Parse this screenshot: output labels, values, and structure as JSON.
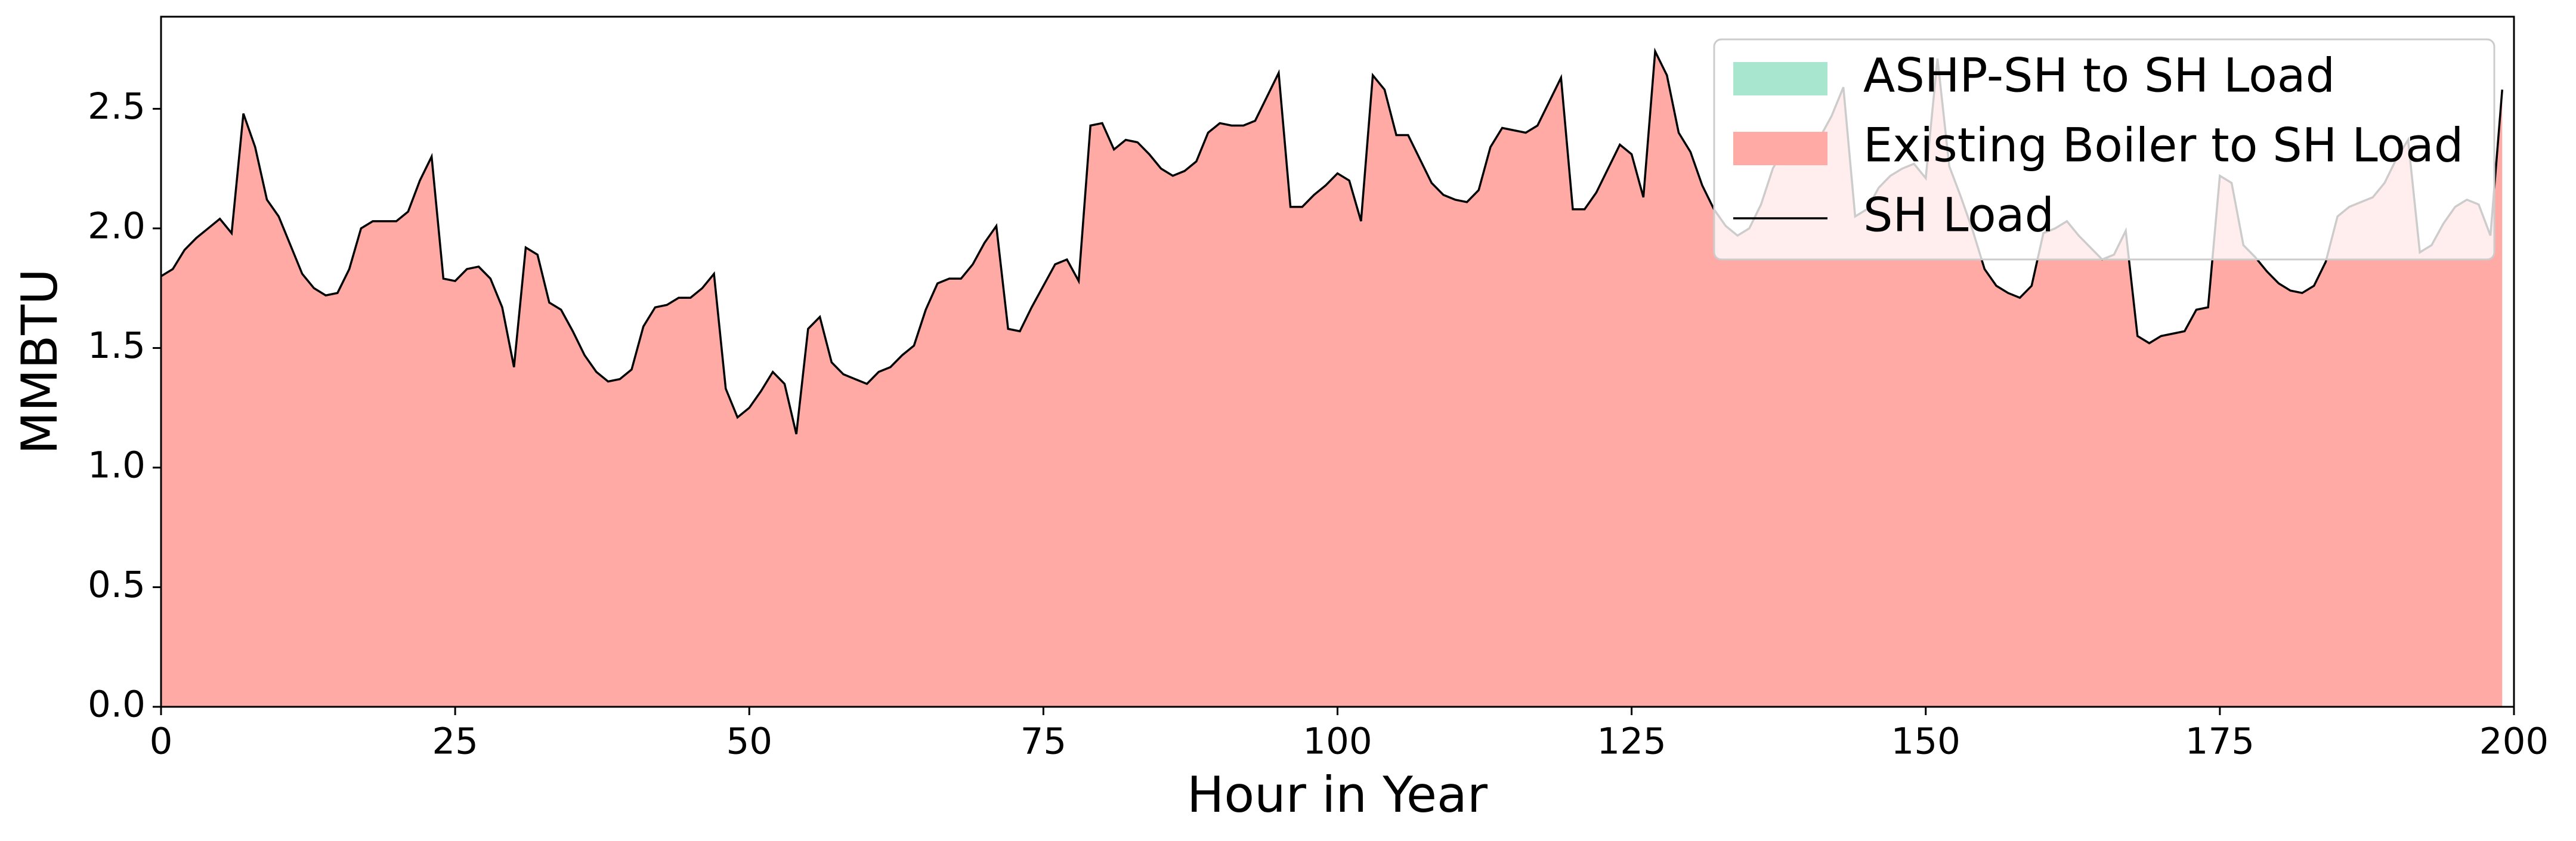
{
  "chart_data": {
    "type": "area",
    "xlabel": "Hour in Year",
    "ylabel": "MMBTU",
    "x": [
      0,
      1,
      2,
      3,
      4,
      5,
      6,
      7,
      8,
      9,
      10,
      11,
      12,
      13,
      14,
      15,
      16,
      17,
      18,
      19,
      20,
      21,
      22,
      23,
      24,
      25,
      26,
      27,
      28,
      29,
      30,
      31,
      32,
      33,
      34,
      35,
      36,
      37,
      38,
      39,
      40,
      41,
      42,
      43,
      44,
      45,
      46,
      47,
      48,
      49,
      50,
      51,
      52,
      53,
      54,
      55,
      56,
      57,
      58,
      59,
      60,
      61,
      62,
      63,
      64,
      65,
      66,
      67,
      68,
      69,
      70,
      71,
      72,
      73,
      74,
      75,
      76,
      77,
      78,
      79,
      80,
      81,
      82,
      83,
      84,
      85,
      86,
      87,
      88,
      89,
      90,
      91,
      92,
      93,
      94,
      95,
      96,
      97,
      98,
      99,
      100,
      101,
      102,
      103,
      104,
      105,
      106,
      107,
      108,
      109,
      110,
      111,
      112,
      113,
      114,
      115,
      116,
      117,
      118,
      119,
      120,
      121,
      122,
      123,
      124,
      125,
      126,
      127,
      128,
      129,
      130,
      131,
      132,
      133,
      134,
      135,
      136,
      137,
      138,
      139,
      140,
      141,
      142,
      143,
      144,
      145,
      146,
      147,
      148,
      149,
      150,
      151,
      152,
      153,
      154,
      155,
      156,
      157,
      158,
      159,
      160,
      161,
      162,
      163,
      164,
      165,
      166,
      167,
      168,
      169,
      170,
      171,
      172,
      173,
      174,
      175,
      176,
      177,
      178,
      179,
      180,
      181,
      182,
      183,
      184,
      185,
      186,
      187,
      188,
      189,
      190,
      191,
      192,
      193,
      194,
      195,
      196,
      197,
      198,
      199
    ],
    "series": [
      {
        "name": "ASHP-SH to SH Load",
        "type": "area",
        "color": "#a8e6cf",
        "values": [
          0,
          0,
          0,
          0,
          0,
          0,
          0,
          0,
          0,
          0,
          0,
          0,
          0,
          0,
          0,
          0,
          0,
          0,
          0,
          0,
          0,
          0,
          0,
          0,
          0,
          0,
          0,
          0,
          0,
          0,
          0,
          0,
          0,
          0,
          0,
          0,
          0,
          0,
          0,
          0,
          0,
          0,
          0,
          0,
          0,
          0,
          0,
          0,
          0,
          0,
          0,
          0,
          0,
          0,
          0,
          0,
          0,
          0,
          0,
          0,
          0,
          0,
          0,
          0,
          0,
          0,
          0,
          0,
          0,
          0,
          0,
          0,
          0,
          0,
          0,
          0,
          0,
          0,
          0,
          0,
          0,
          0,
          0,
          0,
          0,
          0,
          0,
          0,
          0,
          0,
          0,
          0,
          0,
          0,
          0,
          0,
          0,
          0,
          0,
          0,
          0,
          0,
          0,
          0,
          0,
          0,
          0,
          0,
          0,
          0,
          0,
          0,
          0,
          0,
          0,
          0,
          0,
          0,
          0,
          0,
          0,
          0,
          0,
          0,
          0,
          0,
          0,
          0,
          0,
          0,
          0,
          0,
          0,
          0,
          0,
          0,
          0,
          0,
          0,
          0,
          0,
          0,
          0,
          0,
          0,
          0,
          0,
          0,
          0,
          0,
          0,
          0,
          0,
          0,
          0,
          0,
          0,
          0,
          0,
          0,
          0,
          0,
          0,
          0,
          0,
          0,
          0,
          0,
          0,
          0,
          0,
          0,
          0,
          0,
          0,
          0,
          0,
          0,
          0,
          0,
          0,
          0,
          0,
          0,
          0,
          0,
          0,
          0,
          0,
          0,
          0,
          0,
          0,
          0,
          0,
          0,
          0,
          0,
          0,
          0
        ]
      },
      {
        "name": "Existing Boiler to SH Load",
        "type": "area",
        "color": "#ffaaa5",
        "values": [
          1.8,
          1.83,
          1.91,
          1.96,
          2.0,
          2.04,
          1.98,
          2.48,
          2.34,
          2.12,
          2.05,
          1.93,
          1.81,
          1.75,
          1.72,
          1.73,
          1.83,
          2.0,
          2.03,
          2.03,
          2.03,
          2.07,
          2.2,
          2.3,
          1.79,
          1.78,
          1.83,
          1.84,
          1.79,
          1.67,
          1.42,
          1.92,
          1.89,
          1.69,
          1.66,
          1.57,
          1.47,
          1.4,
          1.36,
          1.37,
          1.41,
          1.59,
          1.67,
          1.68,
          1.71,
          1.71,
          1.75,
          1.81,
          1.33,
          1.21,
          1.25,
          1.32,
          1.4,
          1.35,
          1.14,
          1.58,
          1.63,
          1.44,
          1.39,
          1.37,
          1.35,
          1.4,
          1.42,
          1.47,
          1.51,
          1.66,
          1.77,
          1.79,
          1.79,
          1.85,
          1.94,
          2.01,
          1.58,
          1.57,
          1.67,
          1.76,
          1.85,
          1.87,
          1.78,
          2.43,
          2.44,
          2.33,
          2.37,
          2.36,
          2.31,
          2.25,
          2.22,
          2.24,
          2.28,
          2.4,
          2.44,
          2.43,
          2.43,
          2.45,
          2.55,
          2.65,
          2.09,
          2.09,
          2.14,
          2.18,
          2.23,
          2.2,
          2.03,
          2.64,
          2.58,
          2.39,
          2.39,
          2.29,
          2.19,
          2.14,
          2.12,
          2.11,
          2.16,
          2.34,
          2.42,
          2.41,
          2.4,
          2.43,
          2.53,
          2.63,
          2.08,
          2.08,
          2.15,
          2.25,
          2.35,
          2.31,
          2.13,
          2.74,
          2.64,
          2.4,
          2.32,
          2.18,
          2.08,
          2.01,
          1.97,
          2.0,
          2.1,
          2.25,
          2.34,
          2.37,
          2.38,
          2.38,
          2.47,
          2.59,
          2.05,
          2.08,
          2.17,
          2.22,
          2.25,
          2.27,
          2.21,
          2.71,
          2.26,
          2.13,
          1.99,
          1.83,
          1.76,
          1.73,
          1.71,
          1.76,
          1.98,
          2.0,
          2.03,
          1.97,
          1.92,
          1.87,
          1.89,
          1.99,
          1.55,
          1.52,
          1.55,
          1.56,
          1.57,
          1.66,
          1.67,
          2.22,
          2.19,
          1.93,
          1.88,
          1.82,
          1.77,
          1.74,
          1.73,
          1.76,
          1.86,
          2.05,
          2.09,
          2.11,
          2.13,
          2.19,
          2.29,
          2.37,
          1.9,
          1.93,
          2.02,
          2.09,
          2.12,
          2.1,
          1.97,
          2.58
        ]
      },
      {
        "name": "SH Load",
        "type": "line",
        "color": "#000000",
        "values": [
          1.8,
          1.83,
          1.91,
          1.96,
          2.0,
          2.04,
          1.98,
          2.48,
          2.34,
          2.12,
          2.05,
          1.93,
          1.81,
          1.75,
          1.72,
          1.73,
          1.83,
          2.0,
          2.03,
          2.03,
          2.03,
          2.07,
          2.2,
          2.3,
          1.79,
          1.78,
          1.83,
          1.84,
          1.79,
          1.67,
          1.42,
          1.92,
          1.89,
          1.69,
          1.66,
          1.57,
          1.47,
          1.4,
          1.36,
          1.37,
          1.41,
          1.59,
          1.67,
          1.68,
          1.71,
          1.71,
          1.75,
          1.81,
          1.33,
          1.21,
          1.25,
          1.32,
          1.4,
          1.35,
          1.14,
          1.58,
          1.63,
          1.44,
          1.39,
          1.37,
          1.35,
          1.4,
          1.42,
          1.47,
          1.51,
          1.66,
          1.77,
          1.79,
          1.79,
          1.85,
          1.94,
          2.01,
          1.58,
          1.57,
          1.67,
          1.76,
          1.85,
          1.87,
          1.78,
          2.43,
          2.44,
          2.33,
          2.37,
          2.36,
          2.31,
          2.25,
          2.22,
          2.24,
          2.28,
          2.4,
          2.44,
          2.43,
          2.43,
          2.45,
          2.55,
          2.65,
          2.09,
          2.09,
          2.14,
          2.18,
          2.23,
          2.2,
          2.03,
          2.64,
          2.58,
          2.39,
          2.39,
          2.29,
          2.19,
          2.14,
          2.12,
          2.11,
          2.16,
          2.34,
          2.42,
          2.41,
          2.4,
          2.43,
          2.53,
          2.63,
          2.08,
          2.08,
          2.15,
          2.25,
          2.35,
          2.31,
          2.13,
          2.74,
          2.64,
          2.4,
          2.32,
          2.18,
          2.08,
          2.01,
          1.97,
          2.0,
          2.1,
          2.25,
          2.34,
          2.37,
          2.38,
          2.38,
          2.47,
          2.59,
          2.05,
          2.08,
          2.17,
          2.22,
          2.25,
          2.27,
          2.21,
          2.71,
          2.26,
          2.13,
          1.99,
          1.83,
          1.76,
          1.73,
          1.71,
          1.76,
          1.98,
          2.0,
          2.03,
          1.97,
          1.92,
          1.87,
          1.89,
          1.99,
          1.55,
          1.52,
          1.55,
          1.56,
          1.57,
          1.66,
          1.67,
          2.22,
          2.19,
          1.93,
          1.88,
          1.82,
          1.77,
          1.74,
          1.73,
          1.76,
          1.86,
          2.05,
          2.09,
          2.11,
          2.13,
          2.19,
          2.29,
          2.37,
          1.9,
          1.93,
          2.02,
          2.09,
          2.12,
          2.1,
          1.97,
          2.58
        ]
      }
    ],
    "xlim": [
      0,
      200
    ],
    "xticks": [
      0,
      25,
      50,
      75,
      100,
      125,
      150,
      175,
      200
    ],
    "ylim": [
      0,
      2.885
    ],
    "yticks": [
      {
        "value": 0,
        "label": "0.0"
      },
      0.5,
      {
        "value": 1,
        "label": "1.0"
      },
      1.5,
      {
        "value": 2,
        "label": "2.0"
      },
      2.5
    ],
    "legend": "upper right"
  }
}
